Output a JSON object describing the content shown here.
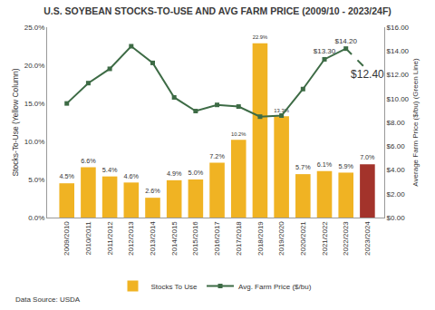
{
  "chart_data": {
    "type": "bar",
    "title": "U.S. SOYBEAN STOCKS-TO-USE AND AVG FARM PRICE (2009/10 - 2023/24F)",
    "y_label": "Stocks-To-Use (Yellow Column)",
    "y2_label": "Average Farm Price ($/bu) (Green Line)",
    "annotations": [
      "Data Source: USDA"
    ],
    "categories": [
      "2009/2010",
      "2010/2011",
      "2011/2012",
      "2012/2013",
      "2013/2014",
      "2014/2015",
      "2015/2016",
      "2016/2017",
      "2017/2018",
      "2018/2019",
      "2019/2020",
      "2020/2021",
      "2021/2022",
      "2022/2023",
      "2023/2024"
    ],
    "series": [
      {
        "name": "Stocks To Use",
        "type": "bar",
        "colors": [
          "#f0b323",
          "#f0b323",
          "#f0b323",
          "#f0b323",
          "#f0b323",
          "#f0b323",
          "#f0b323",
          "#f0b323",
          "#f0b323",
          "#f0b323",
          "#f0b323",
          "#f0b323",
          "#f0b323",
          "#f0b323",
          "#a3332b"
        ],
        "values": [
          4.5,
          6.6,
          5.4,
          4.6,
          2.6,
          4.9,
          5.0,
          7.2,
          10.2,
          22.9,
          13.3,
          5.7,
          6.1,
          5.9,
          7.0
        ],
        "value_labels": [
          "4.5%",
          "6.6%",
          "5.4%",
          "4.6%",
          "2.6%",
          "4.9%",
          "5.0%",
          "7.2%",
          "10.2%",
          "22.9%",
          "13.3%",
          "5.7%",
          "6.1%",
          "5.9%",
          "7.0%"
        ],
        "data_labels": true
      },
      {
        "name": "Avg. Farm Price ($/bu)",
        "type": "line",
        "axis": "y2",
        "color": "#3d6b45",
        "marker": "square",
        "line_style": "solid",
        "values": [
          9.59,
          11.3,
          12.5,
          14.4,
          13.0,
          10.1,
          8.95,
          9.47,
          9.33,
          8.48,
          8.57,
          10.8,
          13.3,
          14.2,
          12.4
        ],
        "value_labels": [
          null,
          null,
          null,
          null,
          null,
          null,
          null,
          null,
          null,
          null,
          null,
          null,
          "$13.30",
          "$14.20",
          "$12.40"
        ],
        "data_labels": true
      }
    ],
    "ylim": [
      0,
      25
    ],
    "yticks": [
      {
        "value": 0,
        "label": "0.0%"
      },
      {
        "value": 5,
        "label": "5.0%"
      },
      {
        "value": 10,
        "label": "10.0%"
      },
      {
        "value": 15,
        "label": "15.0%"
      },
      {
        "value": 20,
        "label": "20.0%"
      },
      {
        "value": 25,
        "label": "25.0%"
      }
    ],
    "y2lim": [
      0,
      16
    ],
    "y2ticks": [
      {
        "value": 0,
        "label": "$0.00"
      },
      {
        "value": 2,
        "label": "$2.00"
      },
      {
        "value": 4,
        "label": "$4.00"
      },
      {
        "value": 6,
        "label": "$6.00"
      },
      {
        "value": 8,
        "label": "$8.00"
      },
      {
        "value": 10,
        "label": "$10.00"
      },
      {
        "value": 12,
        "label": "$12.00"
      },
      {
        "value": 14,
        "label": "$14.00"
      },
      {
        "value": 16,
        "label": "$16.00"
      }
    ],
    "grid": false,
    "legend": "bottom"
  }
}
